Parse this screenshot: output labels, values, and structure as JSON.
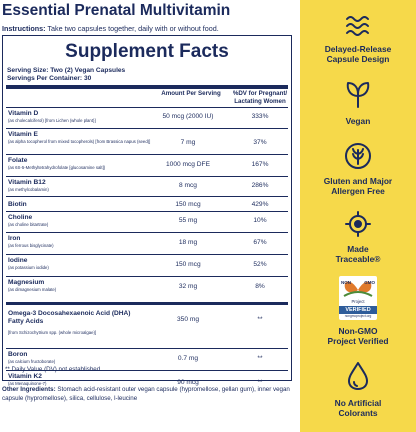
{
  "product": {
    "title": "Essential Prenatal Multivitamin",
    "instructions_label": "Instructions:",
    "instructions_text": " Take two capsules together, daily with or without food."
  },
  "facts": {
    "title": "Supplement Facts",
    "serving_size": "Serving Size: Two (2) Vegan Capsules",
    "servings_per_container": "Servings Per Container: 30",
    "col_amount": "Amount Per Serving",
    "col_dv": "%DV for Pregnant/ Lactating Women",
    "rows": [
      {
        "name": "Vitamin D",
        "sub": "(as cholecalciferol) [from Lichen (whole plant)]",
        "amount": "50 mcg (2000 IU)",
        "dv": "333%"
      },
      {
        "name": "Vitamin E",
        "sub": "(as alpha tocopherol from mixed tocopherols) [from Brassica napus (seed)]",
        "amount": "7 mg",
        "dv": "37%"
      },
      {
        "name": "Folate",
        "sub": "(as 6S-5-Methyltetrahydrofolate [glucosamine salt])",
        "amount": "1000 mcg DFE",
        "dv": "167%"
      },
      {
        "name": "Vitamin B12",
        "sub": "(as methylcobalamin)",
        "amount": "8 mcg",
        "dv": "286%"
      },
      {
        "name": "Biotin",
        "sub": "",
        "amount": "150 mcg",
        "dv": "429%"
      },
      {
        "name": "Choline",
        "sub": "(as choline bitartrate)",
        "amount": "55 mg",
        "dv": "10%"
      },
      {
        "name": "Iron",
        "sub": "(as ferrous bisglycinate)",
        "amount": "18 mg",
        "dv": "67%"
      },
      {
        "name": "Iodine",
        "sub": "(as potassium iodide)",
        "amount": "150 mcg",
        "dv": "52%"
      },
      {
        "name": "Magnesium",
        "sub": "(as dimagnesium malate)",
        "amount": "32 mg",
        "dv": "8%"
      }
    ],
    "rows2": [
      {
        "name": "Omega-3 Docosahexaenoic Acid (DHA) Fatty Acids",
        "sub": "[from Schizochytrium spp. (whole microalgae)]",
        "amount": "350 mg",
        "dv": "**"
      },
      {
        "name": "Boron",
        "sub": "(as calcium fructoborate)",
        "amount": "0.7 mg",
        "dv": "**"
      },
      {
        "name": "Vitamin K2",
        "sub": "(as Menaquinone-7)",
        "amount": "90 mcg",
        "dv": "**"
      }
    ],
    "footnote": "** Daily Value (DV) not established."
  },
  "other_ingredients": {
    "label": "Other Ingredients:",
    "text": " Stomach acid-resistant outer vegan capsule (hypromellose, gellan gum), inner vegan capsule (hypromellose),  silica, cellulose, l-leucine"
  },
  "features": [
    {
      "icon": "waves-icon",
      "line1": "Delayed-Release",
      "line2": "Capsule Design"
    },
    {
      "icon": "leaf-icon",
      "line1": "Vegan",
      "line2": ""
    },
    {
      "icon": "wheat-free-icon",
      "line1": "Gluten and Major",
      "line2": "Allergen Free"
    },
    {
      "icon": "traceable-icon",
      "line1": "Made",
      "line2": "Traceable®"
    },
    {
      "icon": "non-gmo-badge-icon",
      "line1": "Non-GMO",
      "line2": "Project Verified"
    },
    {
      "icon": "drop-icon",
      "line1": "No Artificial",
      "line2": "Colorants"
    }
  ],
  "badge": {
    "line1": "NON",
    "line2": "GMO",
    "line3": "Project",
    "line4": "VERIFIED",
    "line5": "nongmoproject.org"
  },
  "colors": {
    "navy": "#1b2a5c",
    "yellow": "#f6d94a",
    "badge_green": "#4d8b3a",
    "badge_blue": "#2e5c9a"
  }
}
